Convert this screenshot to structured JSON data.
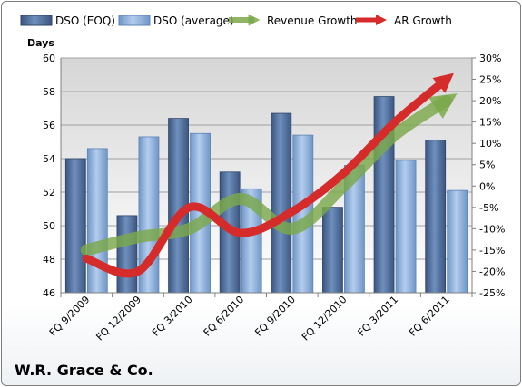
{
  "chart_data": {
    "type": "bar",
    "company": "W.R. Grace & Co.",
    "ylabel": "Days",
    "ylim": [
      46,
      60
    ],
    "y_ticks": [
      "46",
      "48",
      "50",
      "52",
      "54",
      "56",
      "58",
      "60"
    ],
    "y2lim": [
      -25,
      30
    ],
    "y2_ticks": [
      "-25%",
      "-20%",
      "-15%",
      "-10%",
      "-5%",
      "0%",
      "5%",
      "10%",
      "15%",
      "20%",
      "25%",
      "30%"
    ],
    "categories": [
      "FQ 9/2009",
      "FQ 12/2009",
      "FQ 3/2010",
      "FQ 6/2010",
      "FQ 9/2010",
      "FQ 12/2010",
      "FQ 3/2011",
      "FQ 6/2011"
    ],
    "series": [
      {
        "name": "DSO (EOQ)",
        "type": "bar",
        "axis": "left",
        "values": [
          54.0,
          50.6,
          56.4,
          53.2,
          56.7,
          51.1,
          57.7,
          55.1
        ]
      },
      {
        "name": "DSO (average)",
        "type": "bar",
        "axis": "left",
        "values": [
          54.6,
          55.3,
          55.5,
          52.2,
          55.4,
          53.6,
          53.9,
          52.1
        ]
      },
      {
        "name": "Revenue Growth",
        "type": "line",
        "axis": "right",
        "values": [
          -15,
          -12,
          -10,
          -3,
          -10,
          0,
          12,
          20
        ]
      },
      {
        "name": "AR Growth",
        "type": "line",
        "axis": "right",
        "values": [
          -17,
          -20,
          -5,
          -11,
          -6,
          3,
          15,
          25
        ]
      }
    ],
    "colors": {
      "bar1": "#4a6a99",
      "bar2": "#8ab0dc",
      "revenue": "#7ba84a",
      "ar": "#d62b2b"
    },
    "grid": true,
    "legend": "top"
  }
}
